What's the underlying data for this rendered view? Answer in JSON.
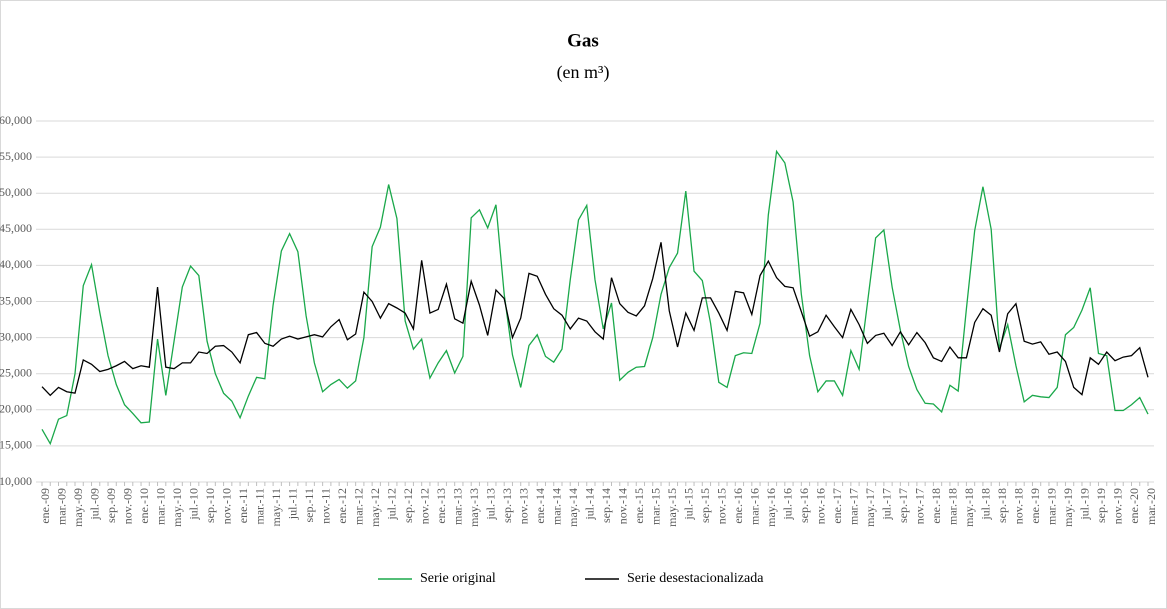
{
  "chart_data": {
    "type": "line",
    "title": "Gas",
    "subtitle": "(en m³)",
    "categories": [
      "ene.-09",
      null,
      "mar.-09",
      null,
      "may.-09",
      null,
      "jul.-09",
      null,
      "sep.-09",
      null,
      "nov.-09",
      null,
      "ene.-10",
      null,
      "mar.-10",
      null,
      "may.-10",
      null,
      "jul.-10",
      null,
      "sep.-10",
      null,
      "nov.-10",
      null,
      "ene.-11",
      null,
      "mar.-11",
      null,
      "may.-11",
      null,
      "jul.-11",
      null,
      "sep.-11",
      null,
      "nov.-11",
      null,
      "ene.-12",
      null,
      "mar.-12",
      null,
      "may.-12",
      null,
      "jul.-12",
      null,
      "sep.-12",
      null,
      "nov.-12",
      null,
      "ene.-13",
      null,
      "mar.-13",
      null,
      "may.-13",
      null,
      "jul.-13",
      null,
      "sep.-13",
      null,
      "nov.-13",
      null,
      "ene.-14",
      null,
      "mar.-14",
      null,
      "may.-14",
      null,
      "jul.-14",
      null,
      "sep.-14",
      null,
      "nov.-14",
      null,
      "ene.-15",
      null,
      "mar.-15",
      null,
      "may.-15",
      null,
      "jul.-15",
      null,
      "sep.-15",
      null,
      "nov.-15",
      null,
      "ene.-16",
      null,
      "mar.-16",
      null,
      "may.-16",
      null,
      "jul.-16",
      null,
      "sep.-16",
      null,
      "nov.-16",
      null,
      "ene.-17",
      null,
      "mar.-17",
      null,
      "may.-17",
      null,
      "jul.-17",
      null,
      "sep.-17",
      null,
      "nov.-17",
      null,
      "ene.-18",
      null,
      "mar.-18",
      null,
      "may.-18",
      null,
      "jul.-18",
      null,
      "sep.-18",
      null,
      "nov.-18",
      null,
      "ene.-19",
      null,
      "mar.-19",
      null,
      "may.-19",
      null,
      "jul.-19",
      null,
      "sep.-19",
      null,
      "nov.-19",
      null,
      "ene.-20",
      null,
      "mar.-20"
    ],
    "series": [
      {
        "name": "Serie original",
        "color": "#1aa84a",
        "values": [
          17300,
          15300,
          18700,
          19200,
          25000,
          37200,
          40100,
          33500,
          27500,
          23500,
          20700,
          19500,
          18200,
          18300,
          29800,
          22000,
          29500,
          37000,
          39900,
          38600,
          29500,
          25000,
          22300,
          21200,
          18900,
          21900,
          24500,
          24300,
          34500,
          42000,
          44400,
          41900,
          33000,
          26500,
          22500,
          23500,
          24200,
          23000,
          24000,
          30000,
          42600,
          45300,
          51200,
          46500,
          32300,
          28400,
          29800,
          24400,
          26500,
          28200,
          25100,
          27400,
          46600,
          47700,
          45200,
          48400,
          36000,
          27600,
          23100,
          28900,
          30400,
          27400,
          26600,
          28400,
          38000,
          46300,
          48300,
          38000,
          31200,
          34800,
          24100,
          25200,
          25900,
          26000,
          30000,
          36000,
          39700,
          41700,
          50300,
          39200,
          37900,
          32000,
          23800,
          23100,
          27500,
          27900,
          27800,
          32000,
          47000,
          55800,
          54200,
          48800,
          36000,
          27500,
          22500,
          24000,
          24000,
          22000,
          28200,
          25600,
          34700,
          43800,
          44900,
          37000,
          31000,
          26000,
          22800,
          20900,
          20800,
          19700,
          23400,
          22600,
          34000,
          44800,
          50900,
          45000,
          28500,
          31800,
          26100,
          21100,
          22000,
          21800,
          21700,
          23100,
          30400,
          31400,
          33800,
          36900,
          27800,
          27500,
          19900,
          19900,
          20700,
          21700,
          19400
        ]
      },
      {
        "name": "Serie desestacionalizada",
        "color": "#000000",
        "values": [
          23200,
          22000,
          23100,
          22500,
          22300,
          26900,
          26300,
          25300,
          25600,
          26100,
          26700,
          25700,
          26100,
          25900,
          37000,
          25900,
          25700,
          26500,
          26500,
          28000,
          27800,
          28800,
          28900,
          28000,
          26500,
          30400,
          30700,
          29200,
          28800,
          29800,
          30200,
          29800,
          30100,
          30400,
          30100,
          31500,
          32500,
          29700,
          30500,
          36300,
          35000,
          32700,
          34700,
          34100,
          33400,
          31200,
          40700,
          33400,
          33900,
          37400,
          32600,
          32000,
          37800,
          34500,
          30300,
          36600,
          35400,
          30000,
          32700,
          38900,
          38500,
          36000,
          34000,
          33100,
          31200,
          32700,
          32300,
          30800,
          29800,
          38300,
          34700,
          33500,
          33000,
          34400,
          38200,
          43200,
          33700,
          28700,
          33400,
          31000,
          35500,
          35500,
          33400,
          31000,
          36400,
          36200,
          33200,
          38600,
          40600,
          38300,
          37100,
          36900,
          33600,
          30200,
          30800,
          33100,
          31500,
          30000,
          33900,
          31800,
          29200,
          30300,
          30600,
          28900,
          30800,
          29000,
          30700,
          29300,
          27200,
          26700,
          28700,
          27200,
          27200,
          32100,
          34000,
          33100,
          28000,
          33300,
          34700,
          29500,
          29100,
          29400,
          27700,
          28000,
          26700,
          23100,
          22100,
          27200,
          26300,
          28000,
          26800,
          27300,
          27500,
          28600,
          24500
        ]
      }
    ],
    "ylim": [
      10000,
      60000
    ],
    "yticks": [
      {
        "value": 10000,
        "label": "10,000"
      },
      {
        "value": 15000,
        "label": "15,000"
      },
      {
        "value": 20000,
        "label": "20,000"
      },
      {
        "value": 25000,
        "label": "25,000"
      },
      {
        "value": 30000,
        "label": "30,000"
      },
      {
        "value": 35000,
        "label": "35,000"
      },
      {
        "value": 40000,
        "label": "40,000"
      },
      {
        "value": 45000,
        "label": "45,000"
      },
      {
        "value": 50000,
        "label": "50,000"
      },
      {
        "value": 55000,
        "label": "55,000"
      },
      {
        "value": 60000,
        "label": "60,000"
      }
    ],
    "grid": true,
    "legend": "bottom"
  }
}
